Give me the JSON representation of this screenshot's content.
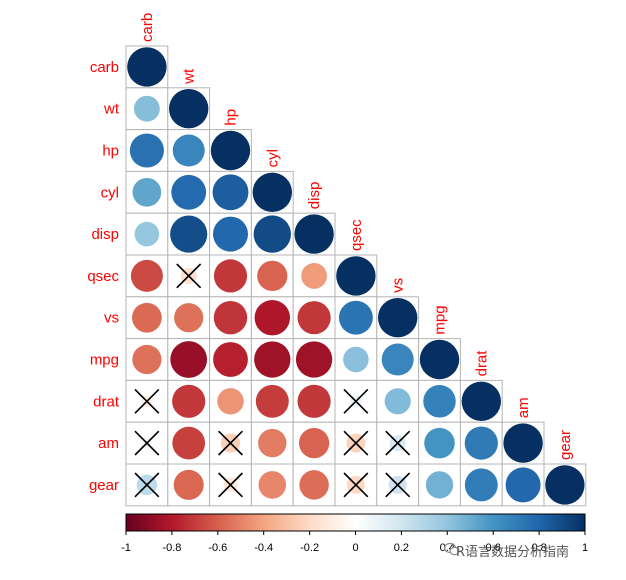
{
  "chart_data": {
    "type": "heatmap",
    "subtype": "corrplot-lower-circles",
    "variables": [
      "carb",
      "wt",
      "hp",
      "cyl",
      "disp",
      "qsec",
      "vs",
      "mpg",
      "drat",
      "am",
      "gear"
    ],
    "matrix": [
      [
        1.0,
        null,
        null,
        null,
        null,
        null,
        null,
        null,
        null,
        null,
        null
      ],
      [
        0.43,
        1.0,
        null,
        null,
        null,
        null,
        null,
        null,
        null,
        null,
        null
      ],
      [
        0.75,
        0.66,
        1.0,
        null,
        null,
        null,
        null,
        null,
        null,
        null,
        null
      ],
      [
        0.53,
        0.78,
        0.83,
        1.0,
        null,
        null,
        null,
        null,
        null,
        null,
        null
      ],
      [
        0.39,
        0.89,
        0.79,
        0.9,
        1.0,
        null,
        null,
        null,
        null,
        null,
        null
      ],
      [
        -0.66,
        -0.17,
        -0.71,
        -0.59,
        -0.43,
        1.0,
        null,
        null,
        null,
        null,
        null
      ],
      [
        -0.57,
        -0.55,
        -0.72,
        -0.81,
        -0.71,
        0.74,
        1.0,
        null,
        null,
        null,
        null
      ],
      [
        -0.55,
        -0.87,
        -0.78,
        -0.85,
        -0.85,
        0.42,
        0.66,
        1.0,
        null,
        null,
        null
      ],
      [
        -0.09,
        -0.71,
        -0.45,
        -0.7,
        -0.71,
        0.09,
        0.44,
        0.68,
        1.0,
        null,
        null
      ],
      [
        0.06,
        -0.69,
        -0.24,
        -0.52,
        -0.59,
        -0.23,
        0.17,
        0.6,
        0.71,
        1.0,
        null
      ],
      [
        0.27,
        -0.58,
        -0.13,
        -0.49,
        -0.56,
        -0.21,
        0.21,
        0.48,
        0.7,
        0.79,
        1.0
      ]
    ],
    "insignificant": [
      [
        8,
        0
      ],
      [
        9,
        0
      ],
      [
        10,
        0
      ],
      [
        5,
        1
      ],
      [
        9,
        2
      ],
      [
        10,
        2
      ],
      [
        8,
        5
      ],
      [
        9,
        5
      ],
      [
        10,
        5
      ],
      [
        9,
        6
      ],
      [
        10,
        6
      ]
    ],
    "colorbar": {
      "ticks": [
        "-1",
        "-0.8",
        "-0.6",
        "-0.4",
        "-0.2",
        "0",
        "0.2",
        "0.4",
        "0.6",
        "0.8",
        "1"
      ],
      "range": [
        -1,
        1
      ]
    },
    "colors": {
      "label": "#ff0000",
      "grid": "#b5b5b5",
      "scale": [
        "#67001F",
        "#B2182B",
        "#D6604D",
        "#F4A582",
        "#FDDBC7",
        "#FFFFFF",
        "#D1E5F0",
        "#92C5DE",
        "#4393C3",
        "#2166AC",
        "#053061"
      ]
    }
  },
  "watermark": "R语言数据分析指南"
}
